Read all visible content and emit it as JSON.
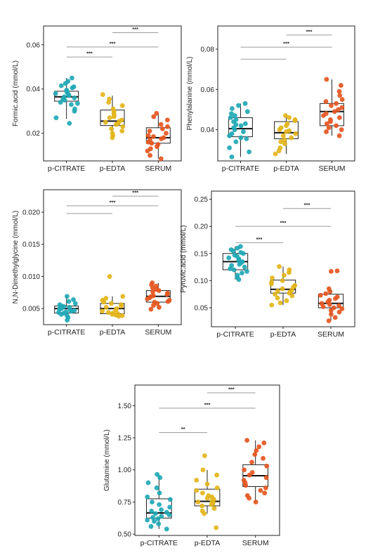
{
  "colors": {
    "p-CITRATE": "#1fa8b5",
    "p-EDTA": "#e3b51a",
    "SERUM": "#e5561f"
  },
  "chart_data": [
    {
      "type": "boxplot",
      "ylabel": "Formic.acid  (mmol/L)",
      "categories": [
        "p-CITRATE",
        "p-EDTA",
        "SERUM"
      ],
      "ylim": [
        0.0075,
        0.0685
      ],
      "yticks": [
        0.02,
        0.04,
        0.06
      ],
      "ytick_labels": [
        "0.02",
        "0.04",
        "0.06"
      ],
      "boxes": [
        {
          "q1": 0.0345,
          "median": 0.0365,
          "q3": 0.039,
          "whislo": 0.0265,
          "whishi": 0.045
        },
        {
          "q1": 0.0235,
          "median": 0.0255,
          "q3": 0.0305,
          "whislo": 0.018,
          "whishi": 0.037
        },
        {
          "q1": 0.0155,
          "median": 0.018,
          "q3": 0.0225,
          "whislo": 0.0085,
          "whishi": 0.029
        }
      ],
      "points": [
        [
          0.045,
          0.0435,
          0.0425,
          0.0415,
          0.041,
          0.0405,
          0.0395,
          0.039,
          0.0385,
          0.038,
          0.0375,
          0.037,
          0.0365,
          0.036,
          0.0355,
          0.035,
          0.034,
          0.0335,
          0.033,
          0.031,
          0.03,
          0.027,
          0.0245
        ],
        [
          0.0375,
          0.0355,
          0.034,
          0.0325,
          0.031,
          0.03,
          0.029,
          0.028,
          0.0275,
          0.027,
          0.026,
          0.0255,
          0.025,
          0.0245,
          0.024,
          0.023,
          0.022,
          0.021,
          0.02,
          0.019,
          0.018
        ],
        [
          0.029,
          0.0275,
          0.026,
          0.024,
          0.023,
          0.022,
          0.021,
          0.02,
          0.019,
          0.0185,
          0.018,
          0.0175,
          0.017,
          0.016,
          0.0155,
          0.015,
          0.014,
          0.013,
          0.012,
          0.01,
          0.0085
        ]
      ],
      "comparisons": [
        {
          "from": 0,
          "to": 1,
          "label": "***",
          "y": 0.0545
        },
        {
          "from": 0,
          "to": 2,
          "label": "***",
          "y": 0.059
        },
        {
          "from": 1,
          "to": 2,
          "label": "***",
          "y": 0.0655
        }
      ]
    },
    {
      "type": "boxplot",
      "ylabel": "Phenylalanine  (mmol/L)",
      "categories": [
        "p-CITRATE",
        "p-EDTA",
        "SERUM"
      ],
      "ylim": [
        0.0245,
        0.0915
      ],
      "yticks": [
        0.04,
        0.06,
        0.08
      ],
      "ytick_labels": [
        "0.04",
        "0.06",
        "0.08"
      ],
      "boxes": [
        {
          "q1": 0.0365,
          "median": 0.0405,
          "q3": 0.046,
          "whislo": 0.0265,
          "whishi": 0.053
        },
        {
          "q1": 0.0355,
          "median": 0.0385,
          "q3": 0.044,
          "whislo": 0.028,
          "whishi": 0.047
        },
        {
          "q1": 0.042,
          "median": 0.049,
          "q3": 0.053,
          "whislo": 0.037,
          "whishi": 0.065
        }
      ],
      "points": [
        [
          0.053,
          0.052,
          0.0505,
          0.049,
          0.048,
          0.047,
          0.046,
          0.045,
          0.044,
          0.043,
          0.0425,
          0.042,
          0.041,
          0.04,
          0.039,
          0.038,
          0.037,
          0.036,
          0.0355,
          0.034,
          0.031,
          0.029,
          0.0265
        ],
        [
          0.047,
          0.046,
          0.045,
          0.0445,
          0.043,
          0.042,
          0.041,
          0.04,
          0.0395,
          0.039,
          0.038,
          0.037,
          0.036,
          0.035,
          0.034,
          0.033,
          0.031,
          0.0295,
          0.028
        ],
        [
          0.065,
          0.062,
          0.059,
          0.057,
          0.055,
          0.054,
          0.053,
          0.052,
          0.051,
          0.05,
          0.049,
          0.048,
          0.047,
          0.046,
          0.045,
          0.044,
          0.043,
          0.042,
          0.041,
          0.04,
          0.039,
          0.037
        ]
      ],
      "comparisons": [
        {
          "from": 0,
          "to": 1,
          "label": "",
          "y": 0.075
        },
        {
          "from": 0,
          "to": 2,
          "label": "***",
          "y": 0.081
        },
        {
          "from": 1,
          "to": 2,
          "label": "***",
          "y": 0.087
        }
      ]
    },
    {
      "type": "boxplot",
      "ylabel": "N,N-Dimethylglycine  (mmol/L)",
      "categories": [
        "p-CITRATE",
        "p-EDTA",
        "SERUM"
      ],
      "ylim": [
        0.0025,
        0.0235
      ],
      "yticks": [
        0.005,
        0.01,
        0.015,
        0.02
      ],
      "ytick_labels": [
        "0.005",
        "0.010",
        "0.015",
        "0.020"
      ],
      "boxes": [
        {
          "q1": 0.0043,
          "median": 0.005,
          "q3": 0.0054,
          "whislo": 0.0032,
          "whishi": 0.0069
        },
        {
          "q1": 0.0042,
          "median": 0.005,
          "q3": 0.0058,
          "whislo": 0.0038,
          "whishi": 0.0069
        },
        {
          "q1": 0.006,
          "median": 0.0069,
          "q3": 0.0078,
          "whislo": 0.0049,
          "whishi": 0.009
        }
      ],
      "points": [
        [
          0.0069,
          0.0064,
          0.0061,
          0.0058,
          0.0056,
          0.0054,
          0.0053,
          0.0052,
          0.0051,
          0.005,
          0.0049,
          0.0048,
          0.0047,
          0.0046,
          0.0045,
          0.0044,
          0.0043,
          0.0041,
          0.0039,
          0.0036,
          0.0032
        ],
        [
          0.01,
          0.0069,
          0.0066,
          0.0063,
          0.006,
          0.0058,
          0.0056,
          0.0054,
          0.0052,
          0.005,
          0.0048,
          0.0046,
          0.0044,
          0.0043,
          0.0042,
          0.0041,
          0.004,
          0.0039,
          0.0038
        ],
        [
          0.009,
          0.0087,
          0.0085,
          0.0082,
          0.008,
          0.0078,
          0.0076,
          0.0074,
          0.0072,
          0.007,
          0.0069,
          0.0067,
          0.0065,
          0.0063,
          0.0061,
          0.006,
          0.0058,
          0.0055,
          0.0052,
          0.0049
        ]
      ],
      "comparisons": [
        {
          "from": 0,
          "to": 1,
          "label": "",
          "y": 0.0198
        },
        {
          "from": 0,
          "to": 2,
          "label": "***",
          "y": 0.021
        },
        {
          "from": 1,
          "to": 2,
          "label": "***",
          "y": 0.0225
        }
      ]
    },
    {
      "type": "boxplot",
      "ylabel": "Pyruvic.acid  (mmol/L)",
      "categories": [
        "p-CITRATE",
        "p-EDTA",
        "SERUM"
      ],
      "ylim": [
        0.015,
        0.265
      ],
      "yticks": [
        0.05,
        0.1,
        0.15,
        0.2,
        0.25
      ],
      "ytick_labels": [
        "0.05",
        "0.10",
        "0.15",
        "0.20",
        "0.25"
      ],
      "boxes": [
        {
          "q1": 0.12,
          "median": 0.135,
          "q3": 0.15,
          "whislo": 0.102,
          "whishi": 0.163
        },
        {
          "q1": 0.077,
          "median": 0.084,
          "q3": 0.101,
          "whislo": 0.055,
          "whishi": 0.126
        },
        {
          "q1": 0.05,
          "median": 0.058,
          "q3": 0.075,
          "whislo": 0.026,
          "whishi": 0.085
        }
      ],
      "points": [
        [
          0.163,
          0.16,
          0.157,
          0.155,
          0.152,
          0.15,
          0.147,
          0.145,
          0.142,
          0.14,
          0.137,
          0.135,
          0.133,
          0.13,
          0.128,
          0.125,
          0.122,
          0.12,
          0.117,
          0.114,
          0.11,
          0.106,
          0.102
        ],
        [
          0.126,
          0.12,
          0.115,
          0.11,
          0.105,
          0.1,
          0.097,
          0.094,
          0.091,
          0.088,
          0.085,
          0.083,
          0.081,
          0.079,
          0.077,
          0.075,
          0.072,
          0.068,
          0.063,
          0.059,
          0.055
        ],
        [
          0.118,
          0.117,
          0.085,
          0.08,
          0.076,
          0.073,
          0.07,
          0.067,
          0.064,
          0.061,
          0.058,
          0.056,
          0.054,
          0.052,
          0.05,
          0.048,
          0.045,
          0.042,
          0.038,
          0.032,
          0.026
        ]
      ],
      "comparisons": [
        {
          "from": 0,
          "to": 1,
          "label": "***",
          "y": 0.17
        },
        {
          "from": 0,
          "to": 2,
          "label": "***",
          "y": 0.2
        },
        {
          "from": 1,
          "to": 2,
          "label": "***",
          "y": 0.233
        }
      ]
    },
    {
      "type": "boxplot",
      "ylabel": "Glutamine  (mmol/L)",
      "categories": [
        "p-CITRATE",
        "p-EDTA",
        "SERUM"
      ],
      "ylim": [
        0.49,
        1.66
      ],
      "yticks": [
        0.5,
        0.75,
        1.0,
        1.25,
        1.5
      ],
      "ytick_labels": [
        "0.50",
        "0.75",
        "1.00",
        "1.25",
        "1.50"
      ],
      "boxes": [
        {
          "q1": 0.625,
          "median": 0.665,
          "q3": 0.775,
          "whislo": 0.54,
          "whishi": 0.965
        },
        {
          "q1": 0.72,
          "median": 0.755,
          "q3": 0.85,
          "whislo": 0.66,
          "whishi": 1.0
        },
        {
          "q1": 0.87,
          "median": 0.955,
          "q3": 1.04,
          "whislo": 0.75,
          "whishi": 1.23
        }
      ],
      "points": [
        [
          0.965,
          0.94,
          0.9,
          0.86,
          0.82,
          0.79,
          0.77,
          0.75,
          0.73,
          0.71,
          0.69,
          0.68,
          0.67,
          0.66,
          0.65,
          0.64,
          0.63,
          0.62,
          0.61,
          0.6,
          0.58,
          0.56,
          0.54
        ],
        [
          1.11,
          1.0,
          0.96,
          0.92,
          0.89,
          0.86,
          0.84,
          0.82,
          0.8,
          0.79,
          0.78,
          0.77,
          0.76,
          0.75,
          0.74,
          0.73,
          0.72,
          0.7,
          0.68,
          0.66,
          0.55
        ],
        [
          1.23,
          1.21,
          1.18,
          1.15,
          1.12,
          1.09,
          1.06,
          1.03,
          1.0,
          0.98,
          0.96,
          0.94,
          0.92,
          0.9,
          0.88,
          0.86,
          0.84,
          0.82,
          0.8,
          0.78,
          0.75
        ]
      ],
      "comparisons": [
        {
          "from": 0,
          "to": 1,
          "label": "**",
          "y": 1.29
        },
        {
          "from": 0,
          "to": 2,
          "label": "***",
          "y": 1.48
        },
        {
          "from": 1,
          "to": 2,
          "label": "***",
          "y": 1.6
        }
      ]
    }
  ]
}
